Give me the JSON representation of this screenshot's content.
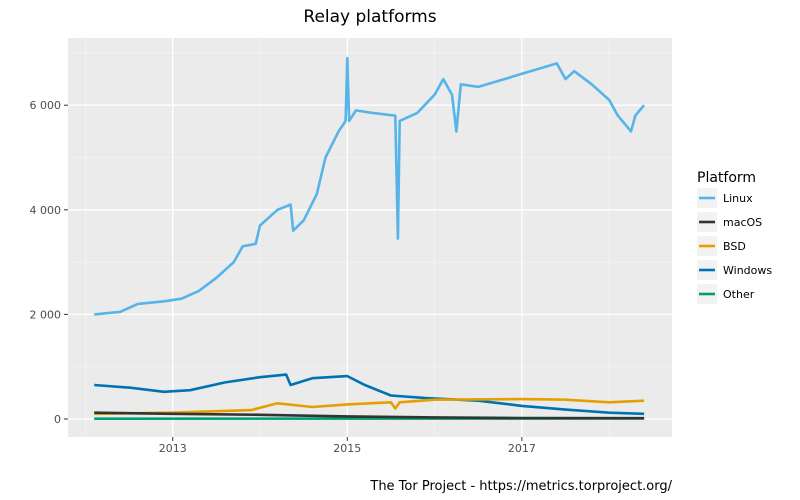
{
  "chart_data": {
    "type": "line",
    "title": "Relay platforms",
    "xlabel": "",
    "ylabel": "",
    "caption": "The Tor Project - https://metrics.torproject.org/",
    "xlim": [
      2011.8,
      2018.72
    ],
    "ylim": [
      -344,
      7285
    ],
    "x_ticks": [
      2013,
      2015,
      2017
    ],
    "x_tick_labels": [
      "2013",
      "2015",
      "2017"
    ],
    "y_ticks": [
      0,
      2000,
      4000,
      6000
    ],
    "y_tick_labels": [
      "0",
      "2 000",
      "4 000",
      "6 000"
    ],
    "grid": true,
    "legend": {
      "title": "Platform",
      "placement": "right"
    },
    "series": [
      {
        "name": "Linux",
        "color": "#56b4e9",
        "points": [
          [
            2012.1,
            2000
          ],
          [
            2012.4,
            2050
          ],
          [
            2012.6,
            2200
          ],
          [
            2012.9,
            2250
          ],
          [
            2013.1,
            2300
          ],
          [
            2013.3,
            2450
          ],
          [
            2013.5,
            2700
          ],
          [
            2013.7,
            3000
          ],
          [
            2013.8,
            3300
          ],
          [
            2013.95,
            3350
          ],
          [
            2014.0,
            3700
          ],
          [
            2014.2,
            4000
          ],
          [
            2014.35,
            4100
          ],
          [
            2014.38,
            3600
          ],
          [
            2014.5,
            3800
          ],
          [
            2014.65,
            4300
          ],
          [
            2014.75,
            5000
          ],
          [
            2014.9,
            5500
          ],
          [
            2014.98,
            5700
          ],
          [
            2015.0,
            6900
          ],
          [
            2015.02,
            5700
          ],
          [
            2015.1,
            5900
          ],
          [
            2015.3,
            5850
          ],
          [
            2015.55,
            5800
          ],
          [
            2015.58,
            3450
          ],
          [
            2015.6,
            5700
          ],
          [
            2015.8,
            5850
          ],
          [
            2016.0,
            6200
          ],
          [
            2016.1,
            6500
          ],
          [
            2016.2,
            6200
          ],
          [
            2016.25,
            5500
          ],
          [
            2016.3,
            6400
          ],
          [
            2016.5,
            6350
          ],
          [
            2016.8,
            6500
          ],
          [
            2017.0,
            6600
          ],
          [
            2017.3,
            6750
          ],
          [
            2017.4,
            6800
          ],
          [
            2017.5,
            6500
          ],
          [
            2017.6,
            6650
          ],
          [
            2017.8,
            6400
          ],
          [
            2018.0,
            6100
          ],
          [
            2018.1,
            5800
          ],
          [
            2018.2,
            5600
          ],
          [
            2018.25,
            5500
          ],
          [
            2018.3,
            5800
          ],
          [
            2018.4,
            6000
          ]
        ]
      },
      {
        "name": "macOS",
        "color": "#333333",
        "points": [
          [
            2012.1,
            120
          ],
          [
            2013.0,
            100
          ],
          [
            2014.0,
            80
          ],
          [
            2015.0,
            50
          ],
          [
            2016.0,
            30
          ],
          [
            2017.0,
            20
          ],
          [
            2018.4,
            15
          ]
        ]
      },
      {
        "name": "BSD",
        "color": "#e69f00",
        "points": [
          [
            2012.1,
            100
          ],
          [
            2013.0,
            120
          ],
          [
            2013.9,
            170
          ],
          [
            2014.2,
            300
          ],
          [
            2014.6,
            230
          ],
          [
            2015.0,
            280
          ],
          [
            2015.5,
            320
          ],
          [
            2015.55,
            200
          ],
          [
            2015.6,
            320
          ],
          [
            2016.0,
            370
          ],
          [
            2017.0,
            380
          ],
          [
            2017.5,
            370
          ],
          [
            2018.0,
            320
          ],
          [
            2018.4,
            350
          ]
        ]
      },
      {
        "name": "Windows",
        "color": "#0072b2",
        "points": [
          [
            2012.1,
            650
          ],
          [
            2012.5,
            600
          ],
          [
            2012.9,
            520
          ],
          [
            2013.2,
            550
          ],
          [
            2013.6,
            700
          ],
          [
            2014.0,
            800
          ],
          [
            2014.3,
            850
          ],
          [
            2014.35,
            650
          ],
          [
            2014.6,
            780
          ],
          [
            2015.0,
            820
          ],
          [
            2015.2,
            650
          ],
          [
            2015.5,
            450
          ],
          [
            2015.9,
            400
          ],
          [
            2016.5,
            350
          ],
          [
            2017.0,
            250
          ],
          [
            2017.5,
            180
          ],
          [
            2018.0,
            120
          ],
          [
            2018.4,
            100
          ]
        ]
      },
      {
        "name": "Other",
        "color": "#009e73",
        "points": [
          [
            2012.1,
            5
          ],
          [
            2015.0,
            8
          ],
          [
            2018.4,
            10
          ]
        ]
      }
    ]
  }
}
